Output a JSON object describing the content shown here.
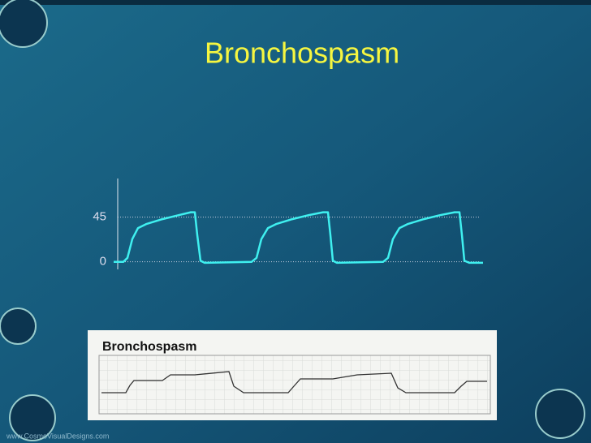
{
  "chart_data": {
    "type": "line",
    "title": "Bronchospasm",
    "inset_label": "Bronchospasm",
    "footer": "www.CosmoVisualDesigns.com",
    "x": [
      0,
      12,
      17,
      23,
      30,
      40,
      60,
      80,
      95,
      100,
      103,
      107,
      112,
      170,
      176,
      182,
      190,
      200,
      220,
      240,
      258,
      264,
      267,
      270,
      275,
      332,
      338,
      344,
      352,
      362,
      382,
      402,
      420,
      426,
      429,
      432,
      438,
      455
    ],
    "series": [
      {
        "color": "#3ff0f0",
        "values": [
          0,
          0,
          4,
          23,
          34,
          38,
          43,
          47,
          50,
          50,
          27,
          1,
          -1,
          0,
          4,
          23,
          34,
          38,
          43,
          47,
          50,
          50,
          27,
          1,
          -1,
          0,
          4,
          23,
          34,
          38,
          43,
          47,
          50,
          50,
          27,
          1,
          -1,
          -1
        ]
      }
    ],
    "xlim": [
      0,
      455
    ],
    "ylim": [
      -6,
      84
    ],
    "yticks": [
      0,
      45
    ],
    "grid": true
  }
}
